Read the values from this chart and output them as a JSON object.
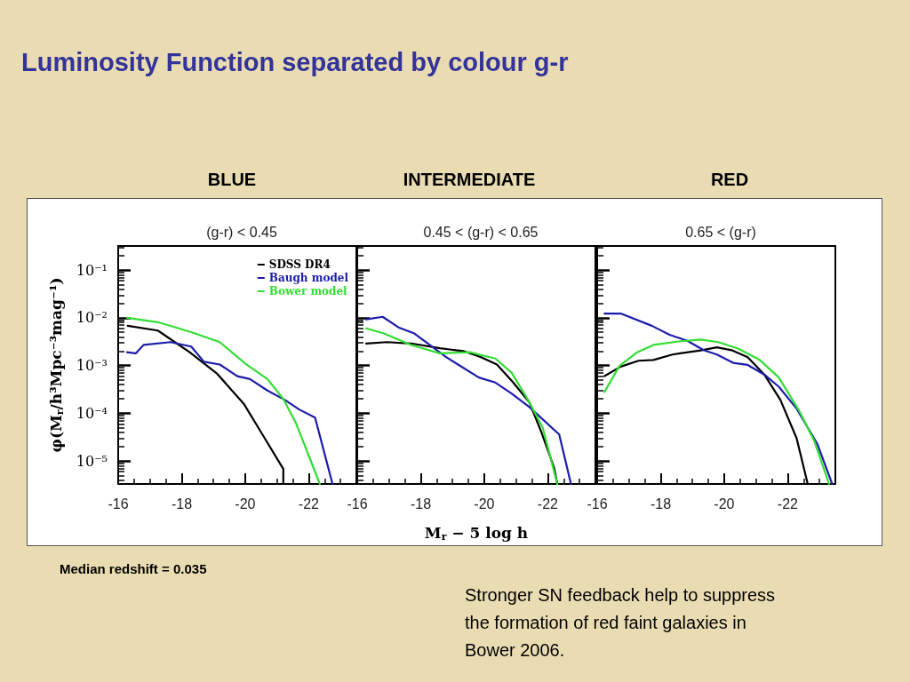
{
  "chart_data": [
    {
      "type": "line",
      "title": "BLUE",
      "subtitle": "(g-r) < 0.45",
      "ylabel": "φ(M$_{r}$/h³Mpc⁻³mag⁻¹)",
      "annotations": [
        "Luminosity Function separated by colour g-r",
        "Median redshift = 0.035",
        "Stronger SN feedback help to suppress the formation of red faint galaxies in Bower 2006."
      ],
      "xlim": [
        -16,
        -23.5
      ],
      "xticks": [
        -16,
        -18,
        -20,
        -22
      ],
      "ylim": [
        3.3e-06,
        0.32
      ],
      "yticks": [
        {
          "value": 0.1,
          "label": "10⁻¹"
        },
        {
          "value": 0.01,
          "label": "10⁻²"
        },
        {
          "value": 0.001,
          "label": "10⁻³"
        },
        {
          "value": 0.0001,
          "label": "10⁻⁴"
        },
        {
          "value": 1e-05,
          "label": "10⁻⁵"
        }
      ],
      "log": "y",
      "legend": "top right",
      "marker": "none",
      "line_style": "solid",
      "series": [
        {
          "name": "SDSS DR4",
          "color": "#000000",
          "x": [
            -16.3,
            -17.25,
            -18.25,
            -19.1,
            -19.95,
            -20.5,
            -21.2,
            -21.2
          ],
          "values": [
            0.0068,
            0.0054,
            0.0019,
            0.00069,
            0.00016,
            4e-05,
            6.8e-06,
            3.3e-06
          ]
        },
        {
          "name": "Baugh model",
          "color": "#1c1caa",
          "x": [
            -16.28,
            -16.55,
            -16.8,
            -17.65,
            -18.3,
            -18.7,
            -19.2,
            -19.75,
            -20.15,
            -20.7,
            -21.25,
            -21.7,
            -22.2,
            -22.75
          ],
          "values": [
            0.0019,
            0.0018,
            0.0027,
            0.0031,
            0.0025,
            0.0012,
            0.00105,
            0.0006,
            0.00052,
            0.0003,
            0.00019,
            0.00012,
            8.1e-05,
            3.3e-06
          ]
        },
        {
          "name": "Bower model",
          "color": "#33dd33",
          "x": [
            -16.28,
            -17.25,
            -18.3,
            -19.2,
            -20.0,
            -20.7,
            -21.2,
            -21.6,
            -22.0,
            -22.35
          ],
          "values": [
            0.01,
            0.0081,
            0.005,
            0.0031,
            0.0011,
            0.00052,
            0.0002,
            6.2e-05,
            1.3e-05,
            3.3e-06
          ]
        }
      ]
    },
    {
      "type": "line",
      "title": "INTERMEDIATE",
      "subtitle": "0.45 < (g-r) < 0.65",
      "xlabel": "M$_{r}$ − 5 log h",
      "xlim": [
        -16,
        -23.5
      ],
      "xticks": [
        -16,
        -18,
        -20,
        -22
      ],
      "ylim": [
        3.3e-06,
        0.32
      ],
      "yticks": [
        {
          "value": 0.1,
          "label": null
        },
        {
          "value": 0.01,
          "label": null
        },
        {
          "value": 0.001,
          "label": null
        },
        {
          "value": 0.0001,
          "label": null
        },
        {
          "value": 1e-05,
          "label": null
        }
      ],
      "log": "y",
      "tick_labels": "x",
      "marker": "none",
      "line_style": "solid",
      "series": [
        {
          "color": "#000000",
          "x": [
            -16.28,
            -16.93,
            -17.7,
            -18.6,
            -19.36,
            -19.9,
            -20.4,
            -20.9,
            -21.42,
            -21.8,
            -22.2,
            -22.3
          ],
          "values": [
            0.0029,
            0.0031,
            0.0029,
            0.0023,
            0.002,
            0.0015,
            0.00105,
            0.00045,
            0.00017,
            4e-05,
            7.2e-06,
            3.3e-06
          ]
        },
        {
          "color": "#1c1caa",
          "x": [
            -16.28,
            -16.8,
            -17.3,
            -17.8,
            -18.8,
            -19.83,
            -20.35,
            -20.86,
            -21.42,
            -22.36,
            -22.73
          ],
          "values": [
            0.0093,
            0.0105,
            0.0063,
            0.0047,
            0.0015,
            0.00056,
            0.00044,
            0.00026,
            0.000135,
            3.6e-05,
            3.3e-06
          ]
        },
        {
          "color": "#33dd33",
          "x": [
            -16.28,
            -16.84,
            -17.7,
            -18.6,
            -19.55,
            -20.35,
            -20.86,
            -21.4,
            -21.84,
            -22.3
          ],
          "values": [
            0.006,
            0.0047,
            0.0027,
            0.0018,
            0.0019,
            0.0014,
            0.00071,
            0.00018,
            5e-05,
            3.3e-06
          ]
        }
      ]
    },
    {
      "type": "line",
      "title": "RED",
      "subtitle": "0.65 < (g-r)",
      "xlim": [
        -16,
        -23.5
      ],
      "xticks": [
        -16,
        -18,
        -20,
        -22
      ],
      "ylim": [
        3.3e-06,
        0.32
      ],
      "yticks": [
        {
          "value": 0.1,
          "label": null
        },
        {
          "value": 0.01,
          "label": null
        },
        {
          "value": 0.001,
          "label": null
        },
        {
          "value": 0.0001,
          "label": null
        },
        {
          "value": 1e-05,
          "label": null
        }
      ],
      "log": "y",
      "tick_labels": "x",
      "marker": "none",
      "line_style": "solid",
      "series": [
        {
          "color": "#000000",
          "x": [
            -16.23,
            -16.74,
            -17.3,
            -17.77,
            -18.37,
            -19.3,
            -19.77,
            -20.23,
            -20.74,
            -21.26,
            -21.77,
            -22.28,
            -22.63
          ],
          "values": [
            0.0006,
            0.00095,
            0.00126,
            0.00131,
            0.0017,
            0.0021,
            0.0024,
            0.0021,
            0.0015,
            0.00065,
            0.00019,
            3e-05,
            3.3e-06
          ]
        },
        {
          "color": "#1c1caa",
          "x": [
            -16.23,
            -16.74,
            -17.72,
            -18.28,
            -18.84,
            -19.35,
            -19.77,
            -20.28,
            -20.74,
            -21.26,
            -21.72,
            -22.28,
            -22.93,
            -23.4
          ],
          "values": [
            0.0123,
            0.0123,
            0.0068,
            0.0044,
            0.0033,
            0.0021,
            0.0017,
            0.00114,
            0.00103,
            0.00065,
            0.00036,
            0.000125,
            2.3e-05,
            3.3e-06
          ]
        },
        {
          "color": "#33dd33",
          "x": [
            -16.23,
            -16.7,
            -17.26,
            -17.77,
            -18.56,
            -19.26,
            -19.81,
            -20.42,
            -21.12,
            -21.72,
            -22.37,
            -22.84,
            -23.3
          ],
          "values": [
            0.00028,
            0.00098,
            0.0019,
            0.0027,
            0.0032,
            0.0035,
            0.0031,
            0.0023,
            0.00131,
            0.00056,
            0.00011,
            2.6e-05,
            3.3e-06
          ]
        }
      ]
    }
  ]
}
